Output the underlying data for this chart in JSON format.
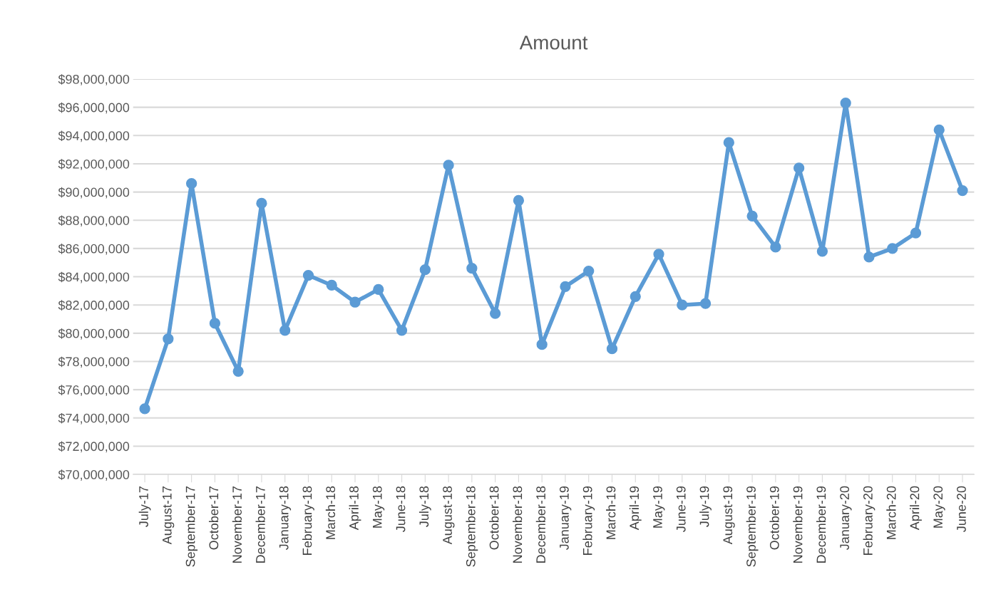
{
  "chart_data": {
    "type": "line",
    "title": "Amount",
    "categories": [
      "July-17",
      "August-17",
      "September-17",
      "October-17",
      "November-17",
      "December-17",
      "January-18",
      "February-18",
      "March-18",
      "April-18",
      "May-18",
      "June-18",
      "July-18",
      "August-18",
      "September-18",
      "October-18",
      "November-18",
      "December-18",
      "January-19",
      "February-19",
      "March-19",
      "April-19",
      "May-19",
      "June-19",
      "July-19",
      "August-19",
      "September-19",
      "October-19",
      "November-19",
      "December-19",
      "January-20",
      "February-20",
      "March-20",
      "April-20",
      "May-20",
      "June-20"
    ],
    "series": [
      {
        "color": "#5b9bd5",
        "values": [
          74650000,
          79600000,
          90600000,
          80700000,
          77300000,
          89200000,
          80200000,
          84100000,
          83400000,
          82200000,
          83100000,
          80200000,
          84500000,
          91900000,
          84600000,
          81400000,
          89400000,
          79200000,
          83300000,
          84400000,
          78900000,
          82600000,
          85600000,
          82000000,
          82100000,
          93500000,
          88300000,
          86100000,
          91700000,
          85800000,
          96300000,
          85400000,
          86000000,
          87100000,
          94400000,
          90100000
        ]
      }
    ],
    "ylim": [
      70000000,
      98000000
    ],
    "yticks": [
      {
        "value": 70000000,
        "label": "$70,000,000"
      },
      {
        "value": 72000000,
        "label": "$72,000,000"
      },
      {
        "value": 74000000,
        "label": "$74,000,000"
      },
      {
        "value": 76000000,
        "label": "$76,000,000"
      },
      {
        "value": 78000000,
        "label": "$78,000,000"
      },
      {
        "value": 80000000,
        "label": "$80,000,000"
      },
      {
        "value": 82000000,
        "label": "$82,000,000"
      },
      {
        "value": 84000000,
        "label": "$84,000,000"
      },
      {
        "value": 86000000,
        "label": "$86,000,000"
      },
      {
        "value": 88000000,
        "label": "$88,000,000"
      },
      {
        "value": 90000000,
        "label": "$90,000,000"
      },
      {
        "value": 92000000,
        "label": "$92,000,000"
      },
      {
        "value": 94000000,
        "label": "$94,000,000"
      },
      {
        "value": 96000000,
        "label": "$96,000,000"
      },
      {
        "value": 98000000,
        "label": "$98,000,000"
      }
    ],
    "grid": "y",
    "marker": "circle",
    "line_style": "solid"
  }
}
